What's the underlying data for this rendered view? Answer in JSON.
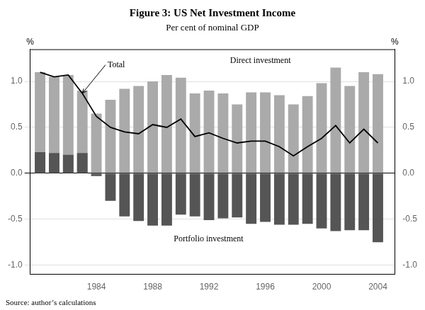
{
  "chart_data": {
    "type": "bar",
    "title": "Figure 3: US Net Investment Income",
    "subtitle": "Per cent of nominal GDP",
    "source": "Source: author’s calculations",
    "ylabel": "%",
    "y2label": "%",
    "x": [
      1980,
      1981,
      1982,
      1983,
      1984,
      1985,
      1986,
      1987,
      1988,
      1989,
      1990,
      1991,
      1992,
      1993,
      1994,
      1995,
      1996,
      1997,
      1998,
      1999,
      2000,
      2001,
      2002,
      2003,
      2004
    ],
    "series": [
      {
        "name": "Direct investment",
        "type": "bar",
        "color": "#aaaaaa",
        "values": [
          1.1,
          1.05,
          1.07,
          0.9,
          0.65,
          0.8,
          0.92,
          0.95,
          1.0,
          1.07,
          1.04,
          0.87,
          0.9,
          0.87,
          0.75,
          0.88,
          0.88,
          0.85,
          0.75,
          0.84,
          0.98,
          1.15,
          0.95,
          1.1,
          1.08
        ]
      },
      {
        "name": "Portfolio investment",
        "type": "bar",
        "color": "#555555",
        "values": [
          0.23,
          0.22,
          0.2,
          0.22,
          -0.03,
          -0.3,
          -0.47,
          -0.52,
          -0.57,
          -0.57,
          -0.45,
          -0.47,
          -0.51,
          -0.49,
          -0.48,
          -0.55,
          -0.53,
          -0.56,
          -0.56,
          -0.55,
          -0.6,
          -0.63,
          -0.62,
          -0.62,
          -0.75
        ]
      },
      {
        "name": "Total",
        "type": "line",
        "color": "#000000",
        "values": [
          1.1,
          1.05,
          1.07,
          0.87,
          0.62,
          0.5,
          0.45,
          0.43,
          0.53,
          0.5,
          0.59,
          0.4,
          0.44,
          0.38,
          0.33,
          0.35,
          0.35,
          0.29,
          0.19,
          0.29,
          0.38,
          0.52,
          0.33,
          0.48,
          0.33
        ]
      }
    ],
    "xlim": [
      1979.3,
      2005.2
    ],
    "xticks": [
      1984,
      1988,
      1992,
      1996,
      2000,
      2004
    ],
    "ylim": [
      -1.1,
      1.35
    ],
    "yticks": [
      {
        "value": -1.0,
        "label": "-1.0"
      },
      -0.5,
      {
        "value": 0.0,
        "label": "0.0"
      },
      0.5,
      {
        "value": 1.0,
        "label": "1.0"
      }
    ],
    "y2lim": [
      -1.1,
      1.35
    ],
    "y2ticks": [
      {
        "value": -1.0,
        "label": "-1.0"
      },
      -0.5,
      {
        "value": 0.0,
        "label": "0.0"
      },
      0.5,
      {
        "value": 1.0,
        "label": "1.0"
      }
    ],
    "grid": true,
    "annotations": [
      {
        "text": "Total",
        "x": 1984.8,
        "y": 1.18,
        "arrow_to": [
          1983.0,
          0.87
        ]
      },
      {
        "text": "Direct investment",
        "x": 1993.5,
        "y": 1.2
      },
      {
        "text": "Portfolio investment",
        "x": 1989.5,
        "y": -0.74
      }
    ]
  }
}
